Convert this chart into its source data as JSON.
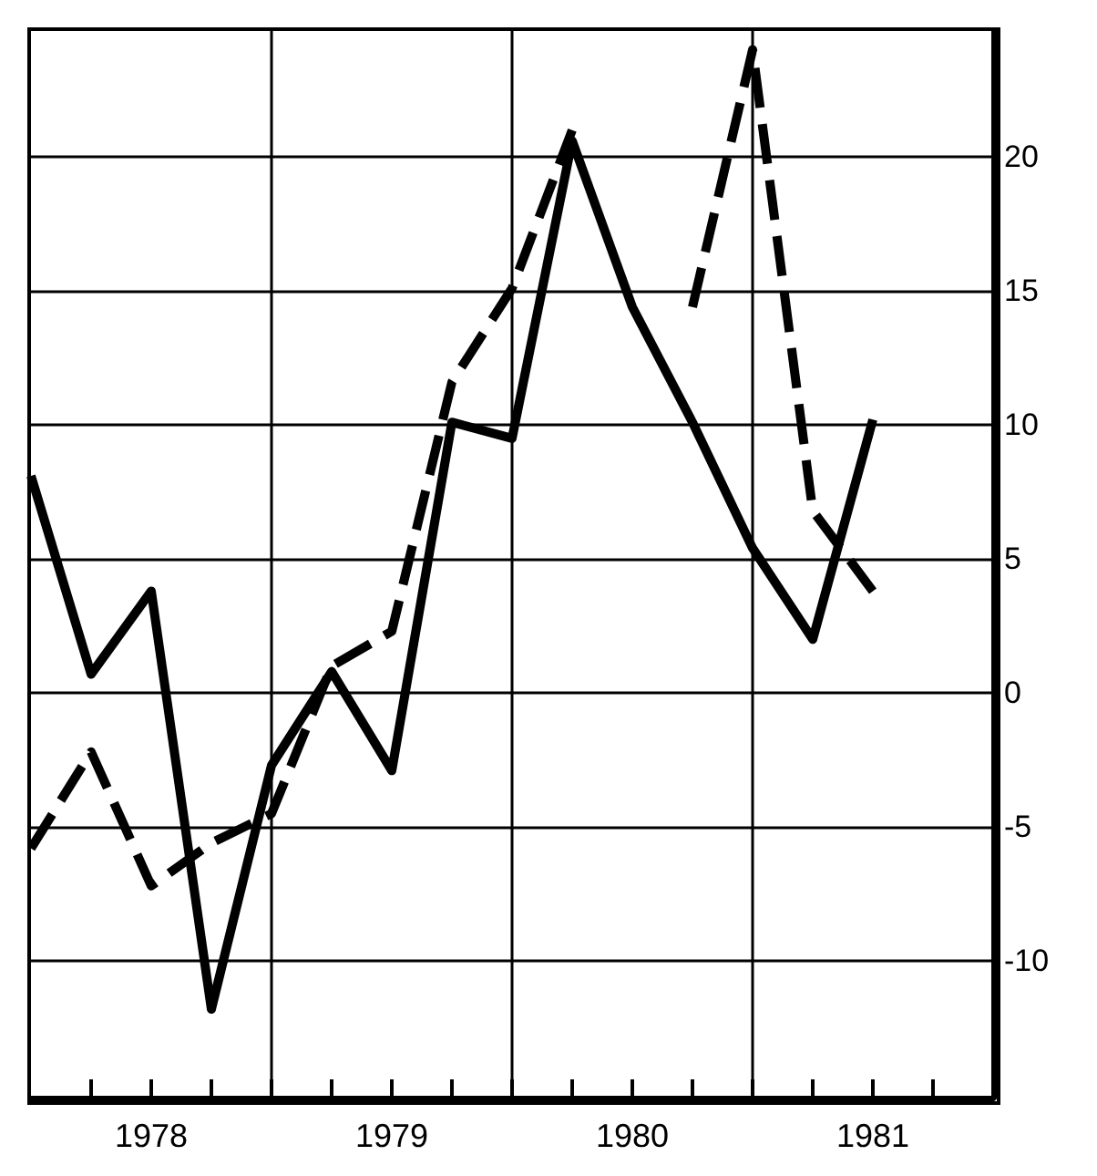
{
  "chart_data": {
    "type": "line",
    "xlim": [
      1978,
      1982
    ],
    "ylim": [
      -15.1,
      24.7
    ],
    "xticks": [
      {
        "value": 1978.25,
        "label": null
      },
      {
        "value": 1978.5,
        "label": "1978"
      },
      {
        "value": 1978.75,
        "label": null
      },
      {
        "value": 1979,
        "label": null
      },
      {
        "value": 1979.25,
        "label": null
      },
      {
        "value": 1979.5,
        "label": "1979"
      },
      {
        "value": 1979.75,
        "label": null
      },
      {
        "value": 1980,
        "label": null
      },
      {
        "value": 1980.25,
        "label": null
      },
      {
        "value": 1980.5,
        "label": "1980"
      },
      {
        "value": 1980.75,
        "label": null
      },
      {
        "value": 1981,
        "label": null
      },
      {
        "value": 1981.25,
        "label": null
      },
      {
        "value": 1981.5,
        "label": "1981"
      },
      {
        "value": 1981.75,
        "label": null
      }
    ],
    "yticks": [
      -10,
      -5,
      0,
      5,
      10,
      15,
      20
    ],
    "grid": "y",
    "ref_lines": [
      {
        "axis": "x",
        "value": 1979,
        "color": "#000000"
      },
      {
        "axis": "x",
        "value": 1980,
        "color": "#000000"
      },
      {
        "axis": "x",
        "value": 1981,
        "color": "#000000"
      }
    ],
    "series": [
      {
        "color": "#000000",
        "line_style": "solid",
        "x": [
          1978,
          1978.25,
          1978.5,
          1978.75,
          1979,
          1979.25,
          1979.5,
          1979.75,
          1980,
          1980.25,
          1980.5,
          1980.75,
          1981,
          1981.25,
          1981.5
        ],
        "values": [
          8.1,
          0.7,
          3.8,
          -11.8,
          -2.7,
          0.8,
          -2.9,
          10.1,
          9.5,
          20.6,
          14.4,
          10.1,
          5.4,
          2.0,
          10.2
        ]
      },
      {
        "color": "#000000",
        "line_style": "dashed",
        "x": [
          1978,
          1978.25,
          1978.5,
          1978.75,
          1979,
          1979.25,
          1979.5,
          1979.75,
          1980,
          1980.25,
          1980.5,
          1980.75,
          1981,
          1981.25,
          1981.5
        ],
        "values": [
          -5.8,
          -2.2,
          -7.2,
          -5.6,
          -4.5,
          1.0,
          2.3,
          11.6,
          15.1,
          21.0,
          null,
          14.4,
          24.0,
          6.8,
          3.8
        ]
      }
    ]
  }
}
